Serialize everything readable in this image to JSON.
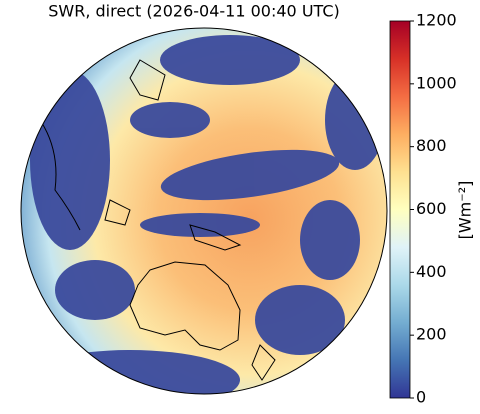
{
  "title": "SWR, direct (2026-04-11 00:40 UTC)",
  "colorbar": {
    "label": "[Wm⁻²]",
    "lim": [
      0,
      1200
    ],
    "ticks": [
      0,
      200,
      400,
      600,
      800,
      1000,
      1200
    ]
  }
}
